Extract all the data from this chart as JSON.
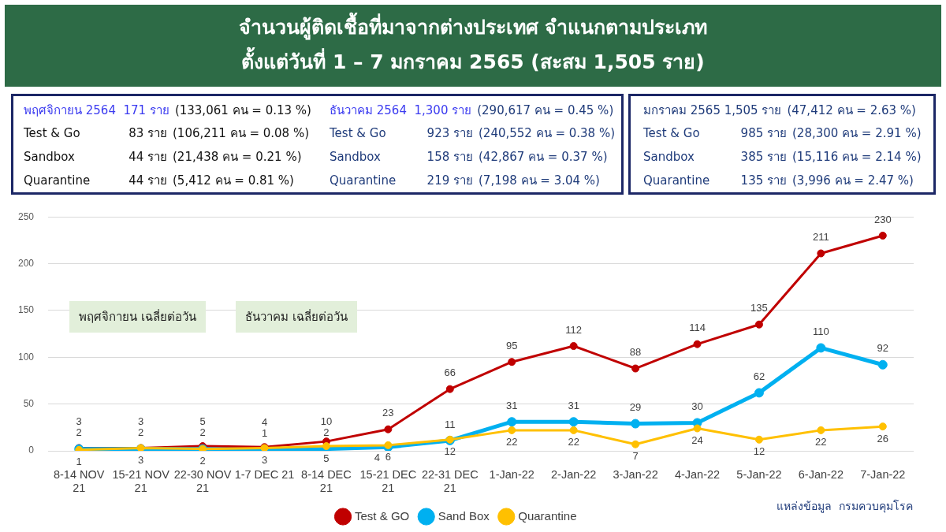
{
  "chart_data": {
    "type": "line",
    "title": "จำนวนผู้ติดเชื้อที่มาจากต่างประเทศ จำแนกตามประเภท",
    "subtitle": "ตั้งแต่วันที่  1 – 7  มกราคม  2565 (สะสม 1,505 ราย)",
    "categories": [
      "8-14 NOV 21",
      "15-21 NOV 21",
      "22-30 NOV 21",
      "1-7 DEC 21",
      "8-14 DEC 21",
      "15-21 DEC 21",
      "22-31 DEC 21",
      "1-Jan-22",
      "2-Jan-22",
      "3-Jan-22",
      "4-Jan-22",
      "5-Jan-22",
      "6-Jan-22",
      "7-Jan-22"
    ],
    "series": [
      {
        "name": "Test & GO",
        "color": "#c00000",
        "values": [
          3,
          3,
          5,
          4,
          10,
          23,
          66,
          95,
          112,
          88,
          114,
          135,
          211,
          230
        ]
      },
      {
        "name": "Sand Box",
        "color": "#00b0f0",
        "values": [
          2,
          2,
          2,
          1,
          2,
          4,
          11,
          31,
          31,
          29,
          30,
          62,
          110,
          92
        ]
      },
      {
        "name": "Quarantine",
        "color": "#ffc000",
        "values": [
          1,
          3,
          2,
          3,
          5,
          6,
          12,
          22,
          22,
          7,
          24,
          12,
          22,
          26
        ]
      }
    ],
    "ylim": [
      0,
      250
    ],
    "yticks": [
      0,
      50,
      100,
      150,
      200,
      250
    ],
    "grid": "y",
    "legend": "bottom",
    "marker": "circle",
    "line_style": "solid",
    "data_labels": true,
    "annotations": [
      "พฤศจิกายน 2564  171 ราย",
      "(133,061 คน = 0.13 %)",
      "Test & Go",
      "83 ราย",
      "(106,211 คน = 0.08 %)",
      "Sandbox",
      "44 ราย",
      "(21,438 คน = 0.21 %)",
      "Quarantine",
      "44 ราย",
      "(5,412 คน = 0.81 %)",
      "ธันวาคม 2564  1,300 ราย",
      "(290,617 คน = 0.45 %)",
      "Test & Go",
      "923 ราย",
      "(240,552 คน = 0.38 %)",
      "Sandbox",
      "158 ราย",
      "(42,867 คน = 0.37 %)",
      "Quarantine",
      "219 ราย",
      "(7,198 คน = 3.04 %)",
      "มกราคม 2565 1,505 ราย",
      "(47,412 คน = 2.63 %)",
      "Test & Go",
      "985 ราย",
      "(28,300 คน = 2.91 %)",
      "Sandbox",
      "385 ราย",
      "(15,116 คน = 2.14 %)",
      "Quarantine",
      "135 ราย",
      "(3,996 คน = 2.47 %)",
      "พฤศจิกายน เฉลี่ยต่อวัน",
      "ธันวาคม เฉลี่ยต่อวัน",
      "แหล่งข้อมูล  กรมควบคุมโรค"
    ]
  }
}
